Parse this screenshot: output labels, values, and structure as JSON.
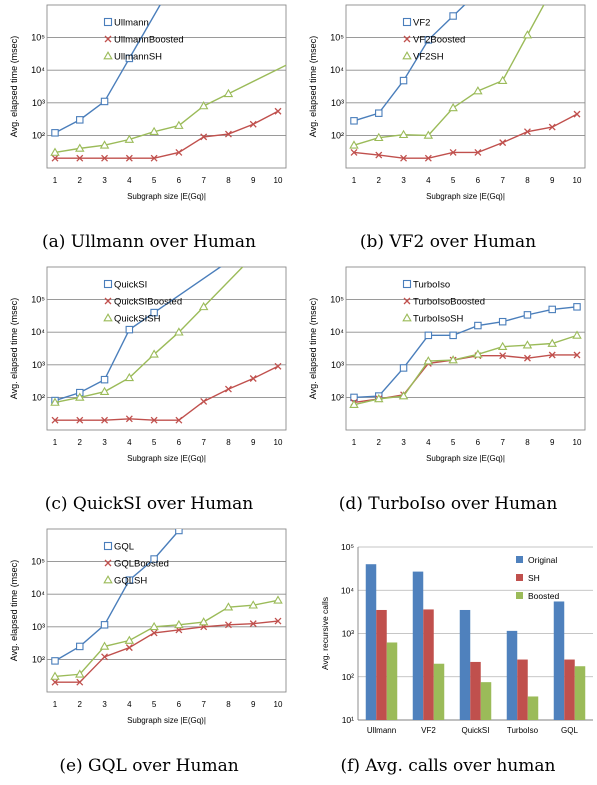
{
  "chart_data": [
    {
      "type": "line",
      "log_y": true,
      "x": [
        1,
        2,
        3,
        4,
        5,
        6,
        7,
        8,
        9,
        10
      ],
      "xlabel": "Subgraph size |E(Gq)|",
      "ylabel": "Avg. elapsed time (msec)",
      "ylim": [
        1,
        100000
      ],
      "ytick_labels": [
        "",
        "10²",
        "10³",
        "10⁴",
        "10⁵"
      ],
      "caption": "(a) Ullmann over Human",
      "series": [
        {
          "name": "Ullmann",
          "marker": "square",
          "color": "#4a7ebb",
          "values": [
            12,
            30,
            110,
            2300,
            null,
            null,
            null,
            null,
            null,
            null
          ],
          "overflow": true
        },
        {
          "name": "UllmannBoosted",
          "marker": "x",
          "color": "#c0504d",
          "values": [
            2,
            2,
            2,
            2,
            2,
            3,
            9,
            11,
            22,
            55
          ]
        },
        {
          "name": "UllmannSH",
          "marker": "triangle",
          "color": "#9bbb59",
          "values": [
            3,
            4,
            5,
            7.5,
            13,
            20,
            80,
            190,
            null,
            null
          ],
          "overflow": true
        }
      ]
    },
    {
      "type": "line",
      "log_y": true,
      "x": [
        1,
        2,
        3,
        4,
        5,
        6,
        7,
        8,
        9,
        10
      ],
      "xlabel": "Subgraph size |E(Gq)|",
      "ylabel": "Avg. elapsed time (msec)",
      "ylim": [
        1,
        100000
      ],
      "ytick_labels": [
        "",
        "10²",
        "10³",
        "10⁴",
        "10⁵"
      ],
      "caption": "(b) VF2 over Human",
      "series": [
        {
          "name": "VF2",
          "marker": "square",
          "color": "#4a7ebb",
          "values": [
            28,
            48,
            480,
            8500,
            46000,
            null,
            null,
            null,
            null,
            null
          ],
          "overflow": true
        },
        {
          "name": "VF2Boosted",
          "marker": "x",
          "color": "#c0504d",
          "values": [
            3,
            2.5,
            2,
            2,
            3,
            3,
            6,
            13,
            18,
            45
          ]
        },
        {
          "name": "VF2SH",
          "marker": "triangle",
          "color": "#9bbb59",
          "values": [
            5,
            8.5,
            10.5,
            10,
            70,
            230,
            480,
            12000,
            null,
            null
          ],
          "overflow": true
        }
      ]
    },
    {
      "type": "line",
      "log_y": true,
      "x": [
        1,
        2,
        3,
        4,
        5,
        6,
        7,
        8,
        9,
        10
      ],
      "xlabel": "Subgraph size |E(Gq)|",
      "ylabel": "Avg. elapsed time (msec)",
      "ylim": [
        1,
        100000
      ],
      "ytick_labels": [
        "",
        "10²",
        "10³",
        "10⁴",
        "10⁵"
      ],
      "caption": "(c) QuickSI over Human",
      "series": [
        {
          "name": "QuickSI",
          "marker": "square",
          "color": "#4a7ebb",
          "values": [
            8,
            14,
            35,
            1200,
            4000,
            null,
            null,
            null,
            null,
            null
          ],
          "overflow": true
        },
        {
          "name": "QuickSIBoosted",
          "marker": "x",
          "color": "#c0504d",
          "values": [
            2,
            2,
            2,
            2.2,
            2,
            2,
            7.5,
            18,
            38,
            90
          ]
        },
        {
          "name": "QuickSISH",
          "marker": "triangle",
          "color": "#9bbb59",
          "values": [
            7,
            10,
            15,
            40,
            210,
            1000,
            6000,
            null,
            null,
            null
          ],
          "overflow": true
        }
      ]
    },
    {
      "type": "line",
      "log_y": true,
      "x": [
        1,
        2,
        3,
        4,
        5,
        6,
        7,
        8,
        9,
        10
      ],
      "xlabel": "Subgraph size |E(Gq)|",
      "ylabel": "Avg. elapsed time (msec)",
      "ylim": [
        1,
        100000
      ],
      "ytick_labels": [
        "",
        "10²",
        "10³",
        "10⁴",
        "10⁵"
      ],
      "caption": "(d) TurboIso over Human",
      "series": [
        {
          "name": "TurboIso",
          "marker": "square",
          "color": "#4a7ebb",
          "values": [
            10,
            11,
            80,
            800,
            800,
            1600,
            2100,
            3400,
            5000,
            6000
          ]
        },
        {
          "name": "TurboIsoBoosted",
          "marker": "x",
          "color": "#c0504d",
          "values": [
            7,
            9,
            12,
            110,
            140,
            190,
            190,
            160,
            200,
            200
          ]
        },
        {
          "name": "TurboIsoSH",
          "marker": "triangle",
          "color": "#9bbb59",
          "values": [
            6,
            9,
            11,
            130,
            140,
            210,
            360,
            400,
            450,
            800
          ]
        }
      ]
    },
    {
      "type": "line",
      "log_y": true,
      "x": [
        1,
        2,
        3,
        4,
        5,
        6,
        7,
        8,
        9,
        10
      ],
      "xlabel": "Subgraph size |E(Gq)|",
      "ylabel": "Avg. elapsed time (msec)",
      "ylim": [
        1,
        100000
      ],
      "ytick_labels": [
        "",
        "10²",
        "10³",
        "10⁴",
        "10⁵"
      ],
      "caption": "(e) GQL over Human",
      "series": [
        {
          "name": "GQL",
          "marker": "square",
          "color": "#4a7ebb",
          "values": [
            9,
            25,
            115,
            2700,
            12000,
            90000,
            null,
            null,
            null,
            null
          ]
        },
        {
          "name": "GQLBoosted",
          "marker": "x",
          "color": "#c0504d",
          "values": [
            2,
            2,
            12,
            23,
            65,
            80,
            100,
            115,
            125,
            150
          ]
        },
        {
          "name": "GQLSH",
          "marker": "triangle",
          "color": "#9bbb59",
          "values": [
            3,
            3.5,
            25,
            38,
            100,
            115,
            140,
            400,
            460,
            650
          ]
        }
      ]
    },
    {
      "type": "bar",
      "log_y": true,
      "categories": [
        "Ullmann",
        "VF2",
        "QuickSI",
        "TurboIso",
        "GQL"
      ],
      "ylabel": "Avg. recursive calls",
      "ylim": [
        10,
        100000
      ],
      "ytick_labels": [
        "10¹",
        "10²",
        "10³",
        "10⁴",
        "10⁵"
      ],
      "caption": "(f) Avg. calls over human",
      "series": [
        {
          "name": "Original",
          "color": "#4f81bd",
          "values": [
            40000,
            27000,
            3500,
            1150,
            5500
          ]
        },
        {
          "name": "SH",
          "color": "#c0504d",
          "values": [
            3500,
            3600,
            220,
            250,
            250
          ]
        },
        {
          "name": "Boosted",
          "color": "#9bbb59",
          "values": [
            620,
            200,
            75,
            35,
            175
          ]
        }
      ]
    }
  ]
}
